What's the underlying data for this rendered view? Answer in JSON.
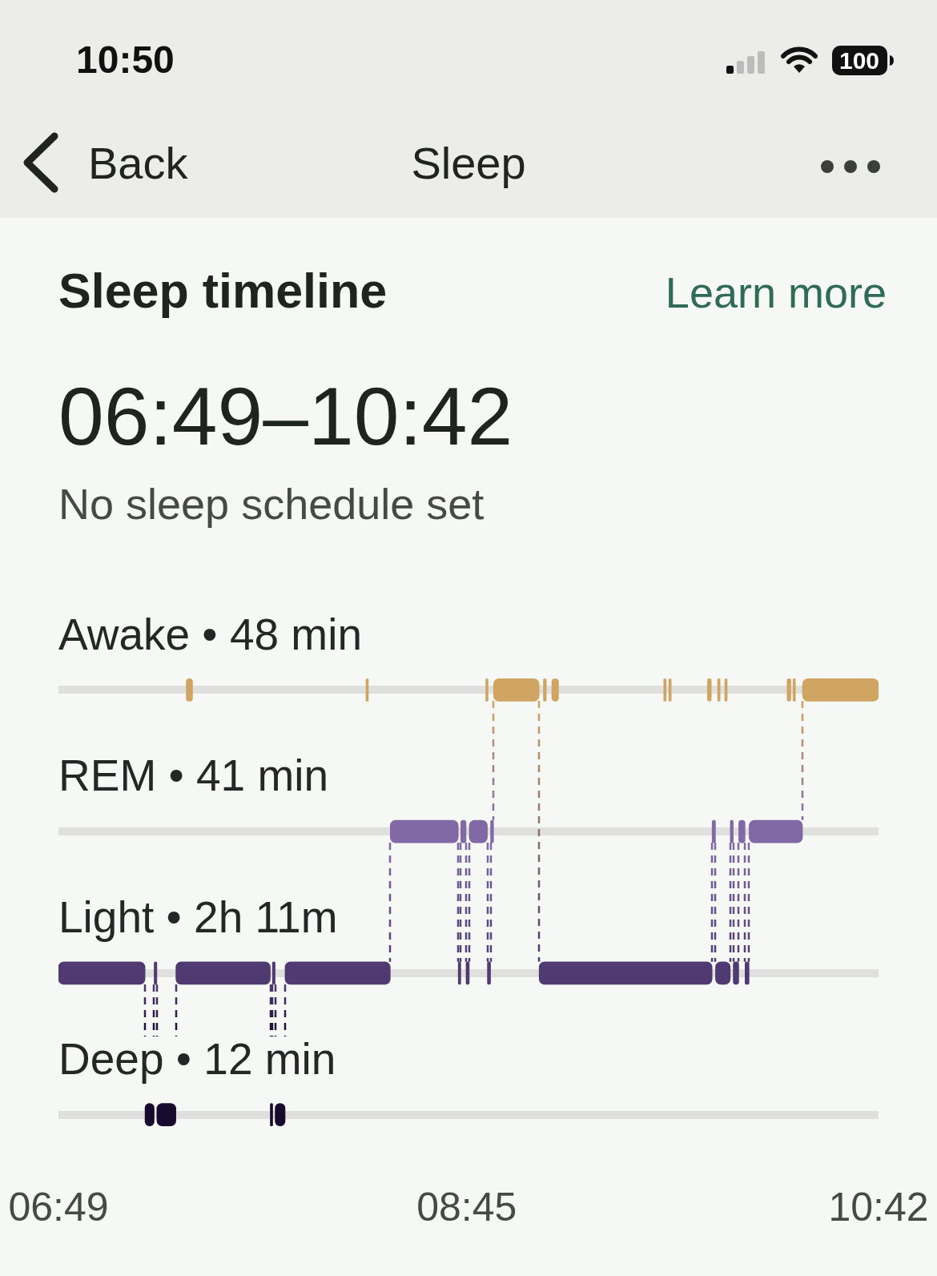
{
  "chart_data": {
    "type": "bar",
    "orientation": "horizontal",
    "title": "Sleep timeline",
    "subtitle": "06:49–10:42",
    "annotations": [
      "No sleep schedule set",
      "Learn more",
      "Sleep",
      "Back",
      "10:50",
      "100"
    ],
    "categories": [
      "Awake • 48 min",
      "REM • 41 min",
      "Light • 2h 11m",
      "Deep • 12 min"
    ],
    "xlim": [
      6.817,
      10.7
    ],
    "xticks": [
      {
        "value": 6.817,
        "label": "06:49"
      },
      {
        "value": 8.75,
        "label": "08:45"
      },
      {
        "value": 10.7,
        "label": "10:42"
      }
    ],
    "grid": "y",
    "series": [
      {
        "color": "#4f3a72",
        "base": [
          null,
          null,
          6.817,
          null
        ],
        "values": [
          null,
          null,
          0.41,
          null
        ]
      },
      {
        "color": "#170a2c",
        "base": [
          null,
          null,
          null,
          7.227
        ],
        "values": [
          null,
          null,
          null,
          0.043
        ]
      },
      {
        "color": "#4f3a72",
        "base": [
          null,
          null,
          7.27,
          null
        ],
        "values": [
          null,
          null,
          0.013,
          null
        ]
      },
      {
        "color": "#170a2c",
        "base": [
          null,
          null,
          null,
          7.283
        ],
        "values": [
          null,
          null,
          null,
          0.09
        ]
      },
      {
        "color": "#4f3a72",
        "base": [
          null,
          null,
          7.373,
          null
        ],
        "values": [
          null,
          null,
          0.447,
          null
        ]
      },
      {
        "color": "#d0a463",
        "base": [
          7.422,
          null,
          null,
          null
        ],
        "values": [
          0.03,
          null,
          null,
          null
        ]
      },
      {
        "color": "#170a2c",
        "base": [
          null,
          null,
          null,
          7.82
        ],
        "values": [
          null,
          null,
          null,
          0.01
        ]
      },
      {
        "color": "#4f3a72",
        "base": [
          null,
          null,
          7.83,
          null
        ],
        "values": [
          null,
          null,
          0.013,
          null
        ]
      },
      {
        "color": "#170a2c",
        "base": [
          null,
          null,
          null,
          7.843
        ],
        "values": [
          null,
          null,
          null,
          0.047
        ]
      },
      {
        "color": "#4f3a72",
        "base": [
          null,
          null,
          7.89,
          null
        ],
        "values": [
          null,
          null,
          0.498,
          null
        ]
      },
      {
        "color": "#d0a463",
        "base": [
          8.273,
          null,
          null,
          null
        ],
        "values": [
          0.009,
          null,
          null,
          null
        ]
      },
      {
        "color": "#8169a5",
        "base": [
          null,
          8.388,
          null,
          null
        ],
        "values": [
          null,
          0.322,
          null,
          null
        ]
      },
      {
        "color": "#4f3a72",
        "base": [
          null,
          null,
          8.71,
          null
        ],
        "values": [
          null,
          null,
          0.012,
          null
        ]
      },
      {
        "color": "#8169a5",
        "base": [
          null,
          8.722,
          null,
          null
        ],
        "values": [
          null,
          0.025,
          null,
          null
        ]
      },
      {
        "color": "#4f3a72",
        "base": [
          null,
          null,
          8.747,
          null
        ],
        "values": [
          null,
          null,
          0.015,
          null
        ]
      },
      {
        "color": "#8169a5",
        "base": [
          null,
          8.762,
          null,
          null
        ],
        "values": [
          null,
          0.086,
          null,
          null
        ]
      },
      {
        "color": "#d0a463",
        "base": [
          8.84,
          null,
          null,
          null
        ],
        "values": [
          0.007,
          null,
          null,
          null
        ]
      },
      {
        "color": "#4f3a72",
        "base": [
          null,
          null,
          8.848,
          null
        ],
        "values": [
          null,
          null,
          0.015,
          null
        ]
      },
      {
        "color": "#8169a5",
        "base": [
          null,
          8.863,
          null,
          null
        ],
        "values": [
          null,
          0.014,
          null,
          null
        ]
      },
      {
        "color": "#d0a463",
        "base": [
          8.877,
          null,
          null,
          null
        ],
        "values": [
          0.216,
          null,
          null,
          null
        ]
      },
      {
        "color": "#4f3a72",
        "base": [
          null,
          null,
          9.093,
          null
        ],
        "values": [
          null,
          null,
          0.819,
          null
        ]
      },
      {
        "color": "#d0a463",
        "base": [
          9.113,
          null,
          null,
          null
        ],
        "values": [
          0.014,
          null,
          null,
          null
        ]
      },
      {
        "color": "#d0a463",
        "base": [
          9.153,
          null,
          null,
          null
        ],
        "values": [
          0.032,
          null,
          null,
          null
        ]
      },
      {
        "color": "#d0a463",
        "base": [
          9.683,
          null,
          null,
          null
        ],
        "values": [
          0.01,
          null,
          null,
          null
        ]
      },
      {
        "color": "#d0a463",
        "base": [
          9.707,
          null,
          null,
          null
        ],
        "values": [
          0.011,
          null,
          null,
          null
        ]
      },
      {
        "color": "#d0a463",
        "base": [
          9.89,
          null,
          null,
          null
        ],
        "values": [
          0.018,
          null,
          null,
          null
        ]
      },
      {
        "color": "#8169a5",
        "base": [
          null,
          9.912,
          null,
          null
        ],
        "values": [
          null,
          0.016,
          null,
          null
        ]
      },
      {
        "color": "#4f3a72",
        "base": [
          null,
          null,
          9.928,
          null
        ],
        "values": [
          null,
          null,
          0.07,
          null
        ]
      },
      {
        "color": "#d0a463",
        "base": [
          9.938,
          null,
          null,
          null
        ],
        "values": [
          0.012,
          null,
          null,
          null
        ]
      },
      {
        "color": "#d0a463",
        "base": [
          9.972,
          null,
          null,
          null
        ],
        "values": [
          0.01,
          null,
          null,
          null
        ]
      },
      {
        "color": "#8169a5",
        "base": [
          null,
          9.998,
          null,
          null
        ],
        "values": [
          null,
          0.014,
          null,
          null
        ]
      },
      {
        "color": "#4f3a72",
        "base": [
          null,
          null,
          10.012,
          null
        ],
        "values": [
          null,
          null,
          0.026,
          null
        ]
      },
      {
        "color": "#8169a5",
        "base": [
          null,
          10.038,
          null,
          null
        ],
        "values": [
          null,
          0.03,
          null,
          null
        ]
      },
      {
        "color": "#4f3a72",
        "base": [
          null,
          null,
          10.068,
          null
        ],
        "values": [
          null,
          null,
          0.019,
          null
        ]
      },
      {
        "color": "#8169a5",
        "base": [
          null,
          10.087,
          null,
          null
        ],
        "values": [
          null,
          0.253,
          null,
          null
        ]
      },
      {
        "color": "#d0a463",
        "base": [
          10.267,
          null,
          null,
          null
        ],
        "values": [
          0.018,
          null,
          null,
          null
        ]
      },
      {
        "color": "#d0a463",
        "base": [
          10.295,
          null,
          null,
          null
        ],
        "values": [
          0.008,
          null,
          null,
          null
        ]
      },
      {
        "color": "#d0a463",
        "base": [
          10.34,
          null,
          null,
          null
        ],
        "values": [
          0.36,
          null,
          null,
          null
        ]
      }
    ]
  }
}
